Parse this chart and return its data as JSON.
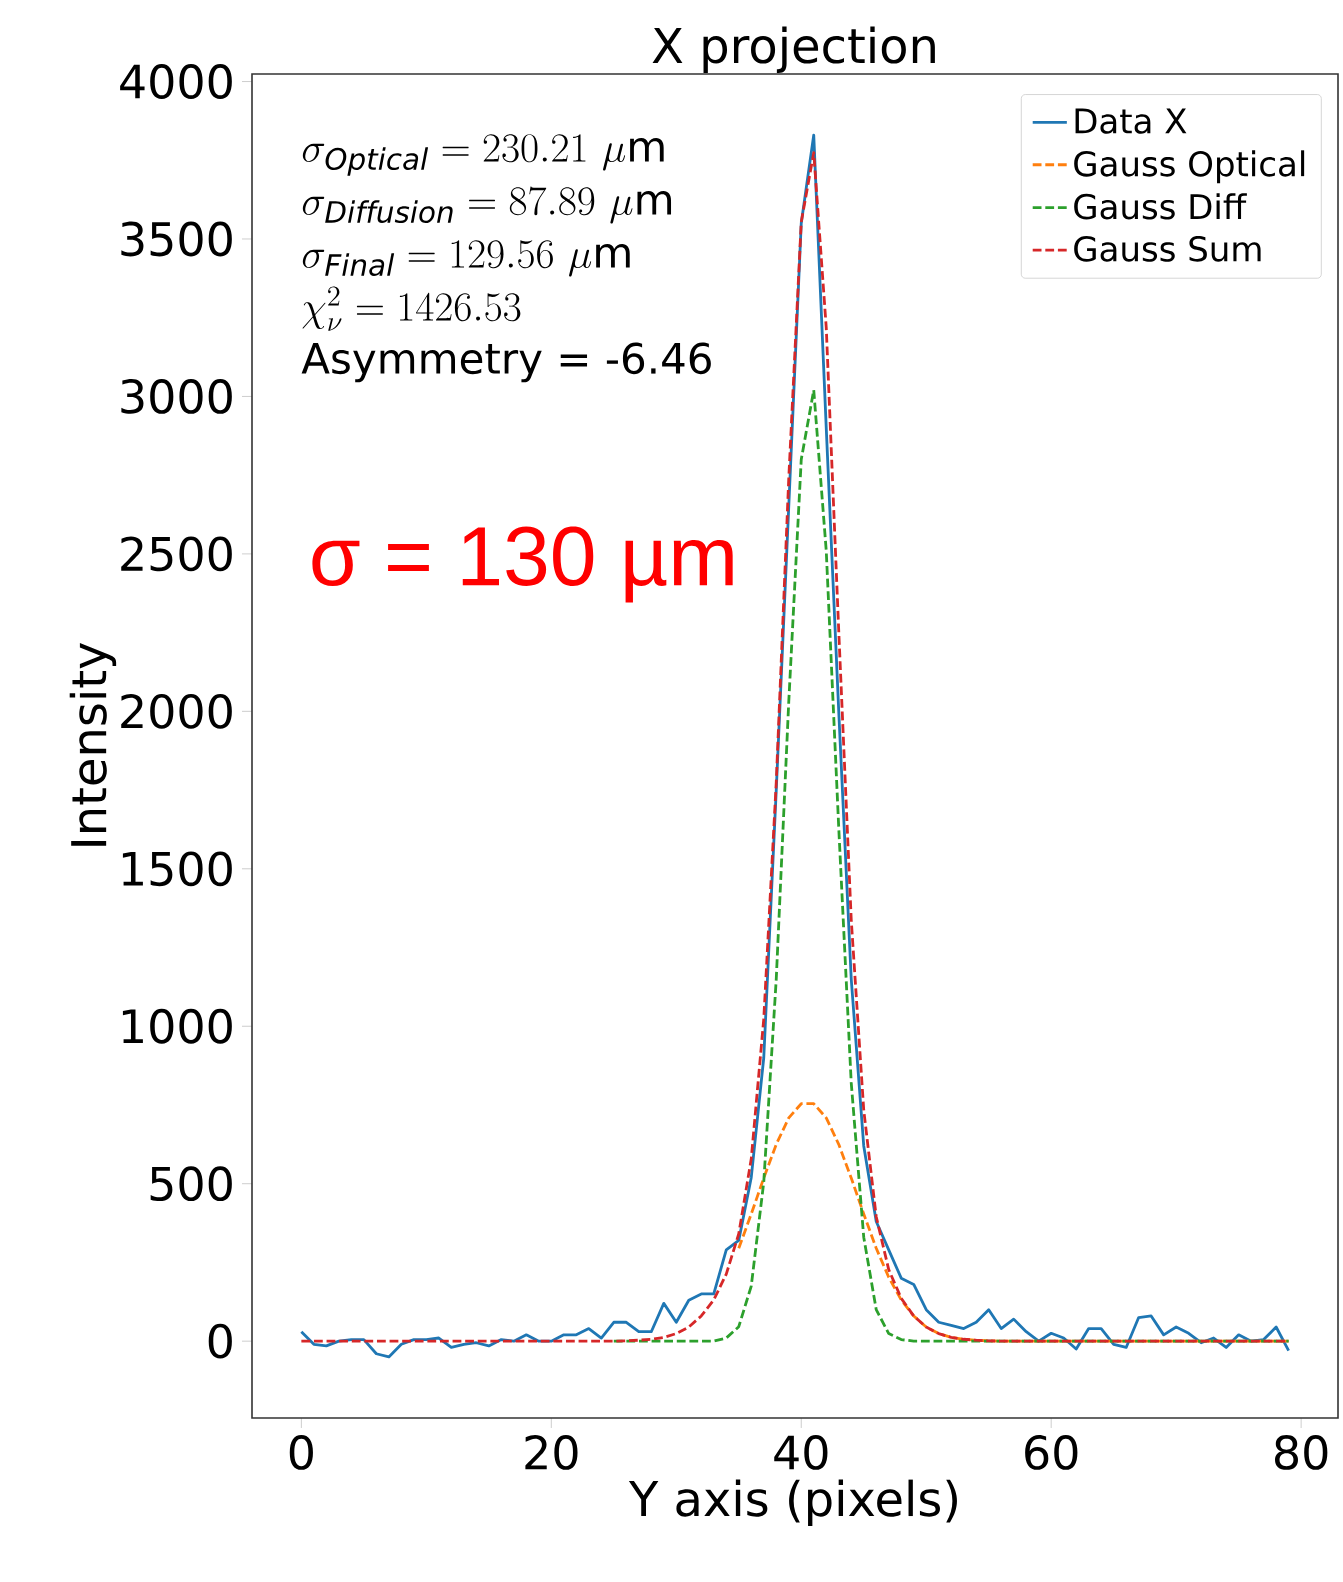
{
  "chart_data": {
    "type": "line",
    "title": "X projection",
    "xlabel": "Y axis (pixels)",
    "ylabel": "Intensity",
    "x": [
      0,
      1,
      2,
      3,
      4,
      5,
      6,
      7,
      8,
      9,
      10,
      11,
      12,
      13,
      14,
      15,
      16,
      17,
      18,
      19,
      20,
      21,
      22,
      23,
      24,
      25,
      26,
      27,
      28,
      29,
      30,
      31,
      32,
      33,
      34,
      35,
      36,
      37,
      38,
      39,
      40,
      41,
      42,
      43,
      44,
      45,
      46,
      47,
      48,
      49,
      50,
      51,
      52,
      53,
      54,
      55,
      56,
      57,
      58,
      59,
      60,
      61,
      62,
      63,
      64,
      65,
      66,
      67,
      68,
      69,
      70,
      71,
      72,
      73,
      74,
      75,
      76,
      77,
      78,
      79
    ],
    "series": [
      {
        "name": "Data X",
        "color": "#1f77b4",
        "line_style": "solid",
        "values": [
          30,
          -10,
          -15,
          0,
          5,
          5,
          -40,
          -50,
          -10,
          5,
          5,
          10,
          -20,
          -10,
          -5,
          -15,
          5,
          0,
          20,
          0,
          0,
          20,
          20,
          40,
          10,
          60,
          60,
          30,
          30,
          120,
          60,
          130,
          150,
          150,
          290,
          320,
          520,
          900,
          1750,
          2650,
          3550,
          3830,
          2900,
          2000,
          1150,
          620,
          380,
          290,
          200,
          180,
          100,
          60,
          50,
          40,
          60,
          100,
          40,
          70,
          30,
          0,
          25,
          10,
          -25,
          40,
          40,
          -10,
          -20,
          75,
          80,
          20,
          45,
          25,
          -5,
          10,
          -20,
          20,
          0,
          5,
          45,
          -30
        ]
      },
      {
        "name": "Gauss Optical",
        "color": "#ff7f0e",
        "line_style": "dashed",
        "values": [
          null,
          null,
          null,
          null,
          null,
          null,
          null,
          null,
          null,
          null,
          null,
          null,
          null,
          null,
          null,
          null,
          null,
          null,
          null,
          null,
          null,
          null,
          null,
          null,
          null,
          null,
          null,
          null,
          null,
          null,
          null,
          null,
          null,
          null,
          null,
          295,
          404,
          518,
          625,
          709,
          754,
          754,
          709,
          625,
          518,
          404,
          295,
          203,
          131,
          80,
          45,
          24,
          12,
          6,
          3,
          1,
          0,
          0,
          0,
          0,
          0,
          0,
          0,
          0,
          0,
          0,
          0,
          0,
          0,
          0,
          0,
          0,
          0,
          0,
          0,
          0,
          0,
          0,
          0,
          0
        ]
      },
      {
        "name": "Gauss Diff",
        "color": "#2ca02c",
        "line_style": "dashed",
        "values": [
          null,
          null,
          null,
          null,
          null,
          null,
          null,
          null,
          null,
          null,
          null,
          null,
          null,
          null,
          null,
          null,
          null,
          null,
          null,
          null,
          null,
          null,
          null,
          null,
          null,
          0,
          0,
          0,
          0,
          0,
          0,
          0,
          0,
          0,
          10,
          46,
          175,
          505,
          1150,
          2030,
          2800,
          3020,
          2510,
          1630,
          820,
          330,
          100,
          24,
          5,
          0,
          0,
          0,
          0,
          0,
          0,
          0,
          0,
          0,
          0,
          0,
          0,
          0,
          0,
          0,
          0,
          0,
          0,
          0,
          0,
          0,
          0,
          0,
          0,
          0,
          0,
          0,
          0,
          0,
          0,
          0
        ]
      },
      {
        "name": "Gauss Sum",
        "color": "#d62728",
        "line_style": "dashed",
        "values": [
          0,
          0,
          0,
          0,
          0,
          0,
          0,
          0,
          0,
          0,
          0,
          0,
          0,
          0,
          0,
          0,
          0,
          0,
          0,
          0,
          0,
          0,
          0,
          0,
          0,
          0,
          1,
          3,
          6,
          12,
          24,
          45,
          80,
          131,
          213,
          341,
          579,
          1023,
          1775,
          2739,
          3554,
          3774,
          3219,
          2255,
          1338,
          734,
          395,
          227,
          136,
          80,
          45,
          24,
          12,
          6,
          3,
          1,
          0,
          0,
          0,
          0,
          0,
          0,
          0,
          0,
          0,
          0,
          0,
          0,
          0,
          0,
          0,
          0,
          0,
          0,
          0,
          0,
          0,
          0,
          0,
          0
        ]
      }
    ],
    "xlim": [
      -3.95,
      82.95
    ],
    "ylim": [
      -244,
      4024
    ],
    "xticks": [
      0,
      20,
      40,
      60,
      80
    ],
    "yticks": [
      0,
      500,
      1000,
      1500,
      2000,
      2500,
      3000,
      3500,
      4000
    ],
    "grid": false,
    "legend": "top right",
    "marker": "none",
    "annotations": [
      "\\sigma_{\\mathit{Optical}} = 230.21\\ \\mu\\mathrm{m}",
      "\\sigma_{\\mathit{Diffusion}} = 87.89\\ \\mu\\mathrm{m}",
      "\\sigma_{\\mathit{Final}} = 129.56\\ \\mu\\mathrm{m}",
      "\\chi_{\\nu}^{2}= 1426.53",
      "Asymmetry = -6.46",
      "σ = 130 µm"
    ]
  }
}
